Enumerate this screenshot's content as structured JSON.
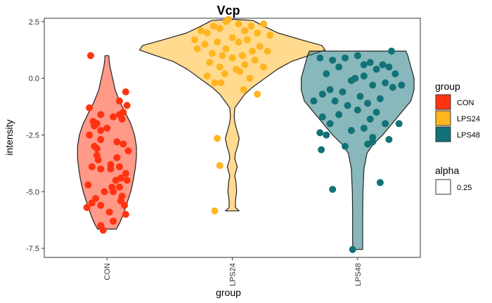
{
  "chart_data": {
    "type": "violin",
    "title": "Vcp",
    "xlabel": "group",
    "ylabel": "intensity",
    "ylim": [
      -7.9,
      2.65
    ],
    "yticks": [
      2.5,
      0.0,
      -2.5,
      -5.0,
      -7.5
    ],
    "ytick_labels": [
      "2.5",
      "0.0",
      "-2.5",
      "-5.0",
      "-7.5"
    ],
    "categories": [
      "CON",
      "LPS24",
      "LPS48"
    ],
    "colors": {
      "CON": "#ff3311",
      "LPS24": "#ffb520",
      "LPS48": "#127277"
    },
    "violin_alpha": 0.5,
    "grid": false,
    "legend_position": "right",
    "legends": [
      {
        "title": "group",
        "items": [
          "CON",
          "LPS24",
          "LPS48"
        ]
      },
      {
        "title": "alpha",
        "items": [
          "0.25"
        ]
      }
    ],
    "violins": [
      {
        "group": "CON",
        "profile": [
          [
            -6.65,
            0.15
          ],
          [
            -6.4,
            0.2
          ],
          [
            -6.0,
            0.26
          ],
          [
            -5.5,
            0.32
          ],
          [
            -5.0,
            0.38
          ],
          [
            -4.5,
            0.42
          ],
          [
            -4.0,
            0.45
          ],
          [
            -3.5,
            0.47
          ],
          [
            -3.0,
            0.47
          ],
          [
            -2.5,
            0.44
          ],
          [
            -2.0,
            0.38
          ],
          [
            -1.5,
            0.29
          ],
          [
            -1.0,
            0.2
          ],
          [
            -0.5,
            0.13
          ],
          [
            0.0,
            0.09
          ],
          [
            0.5,
            0.05
          ],
          [
            0.8,
            0.035
          ],
          [
            1.0,
            0.03
          ]
        ]
      },
      {
        "group": "LPS24",
        "profile": [
          [
            -5.85,
            0.11
          ],
          [
            -5.7,
            0.05
          ],
          [
            -5.4,
            0.05
          ],
          [
            -5.0,
            0.07
          ],
          [
            -4.6,
            0.06
          ],
          [
            -4.3,
            0.04
          ],
          [
            -3.9,
            0.08
          ],
          [
            -3.55,
            0.04
          ],
          [
            -3.3,
            0.05
          ],
          [
            -3.0,
            0.085
          ],
          [
            -2.65,
            0.11
          ],
          [
            -2.3,
            0.075
          ],
          [
            -2.0,
            0.045
          ],
          [
            -1.7,
            0.03
          ],
          [
            -1.3,
            0.04
          ],
          [
            -1.0,
            0.12
          ],
          [
            -0.7,
            0.2
          ],
          [
            -0.4,
            0.32
          ],
          [
            0.0,
            0.52
          ],
          [
            0.4,
            0.72
          ],
          [
            0.75,
            0.95
          ],
          [
            1.0,
            1.22
          ],
          [
            1.25,
            1.48
          ],
          [
            1.45,
            1.43
          ],
          [
            1.7,
            1.1
          ],
          [
            2.0,
            0.73
          ],
          [
            2.3,
            0.5
          ],
          [
            2.55,
            0.33
          ],
          [
            2.6,
            0.05
          ]
        ]
      },
      {
        "group": "LPS48",
        "profile": [
          [
            -7.55,
            0.08
          ],
          [
            -7.0,
            0.08
          ],
          [
            -6.0,
            0.08
          ],
          [
            -5.0,
            0.085
          ],
          [
            -4.0,
            0.1
          ],
          [
            -3.3,
            0.15
          ],
          [
            -2.9,
            0.25
          ],
          [
            -2.5,
            0.4
          ],
          [
            -2.0,
            0.55
          ],
          [
            -1.5,
            0.7
          ],
          [
            -1.0,
            0.85
          ],
          [
            -0.5,
            0.9
          ],
          [
            0.0,
            0.9
          ],
          [
            0.5,
            0.85
          ],
          [
            1.0,
            0.8
          ],
          [
            1.2,
            0.77
          ]
        ]
      }
    ],
    "points": [
      {
        "group": "CON",
        "x_offset": [
          -0.13,
          0.15,
          0.1,
          -0.14,
          -0.05,
          0.13,
          -0.11,
          0.16,
          -0.05,
          -0.1,
          0.05,
          -0.14,
          -0.08,
          0.08,
          0.17,
          0.12,
          -0.08,
          -0.05,
          0.15,
          0.08,
          -0.12,
          0.03,
          0.11,
          -0.05,
          0.1,
          -0.15,
          0.05,
          0.12,
          -0.05,
          0.14,
          -0.12,
          0.02,
          0.05,
          -0.05,
          0.15,
          -0.02,
          0.1,
          -0.08,
          0.13,
          0.0,
          0.1,
          -0.1,
          0.04,
          -0.09,
          0.16,
          -0.16,
          -0.03,
          0.07,
          -0.07,
          0.11,
          0.03
        ],
        "y": [
          1.0,
          -0.6,
          -1.0,
          -1.3,
          -1.6,
          -1.5,
          -1.9,
          -1.2,
          -2.3,
          -2.1,
          -1.7,
          -2.5,
          -3.1,
          -2.8,
          -3.2,
          -1.8,
          -2.0,
          -2.7,
          -4.2,
          -3.5,
          -3.9,
          -3.8,
          -4.4,
          -4.0,
          -4.8,
          -4.7,
          -5.0,
          -5.2,
          -5.6,
          -5.6,
          -5.5,
          -5.9,
          -6.3,
          -6.5,
          -6.0,
          -5.0,
          -3.9,
          -3.4,
          -2.9,
          -2.2,
          -1.6,
          -3.0,
          -4.8,
          -5.3,
          -4.5,
          -5.7,
          -6.7,
          -4.5,
          -3.6,
          -5.4,
          -4.0
        ]
      },
      {
        "group": "LPS24",
        "x_offset": [
          -0.15,
          -0.05,
          0.05,
          0.15,
          0.25,
          -0.25,
          0.1,
          -0.1,
          0.2,
          -0.2,
          0.0,
          0.3,
          -0.3,
          0.12,
          -0.12,
          0.22,
          -0.22,
          0.05,
          -0.05,
          0.16,
          -0.16,
          0.08,
          -0.08,
          0.28,
          -0.28,
          0.0,
          0.18,
          -0.18,
          0.1,
          -0.1,
          0.03,
          0.25,
          0.06,
          -0.06,
          0.14,
          -0.14,
          0.09,
          -0.09,
          0.2,
          -0.2,
          -0.03,
          -0.12,
          -0.1,
          -0.14
        ],
        "y": [
          2.3,
          2.5,
          2.4,
          2.3,
          2.4,
          2.1,
          2.1,
          2.2,
          2.0,
          2.0,
          1.8,
          1.9,
          1.7,
          1.7,
          1.6,
          1.4,
          1.5,
          1.6,
          1.3,
          1.2,
          1.1,
          1.0,
          1.0,
          1.2,
          1.3,
          0.9,
          0.8,
          0.7,
          0.6,
          0.5,
          0.4,
          0.5,
          0.3,
          0.2,
          0.0,
          -0.2,
          -0.5,
          -0.2,
          -0.7,
          0.1,
          2.6,
          -2.65,
          -3.85,
          -5.85
        ]
      },
      {
        "group": "LPS48",
        "x_offset": [
          -0.2,
          -0.1,
          0.0,
          0.1,
          0.2,
          0.25,
          -0.25,
          0.15,
          -0.15,
          0.05,
          -0.05,
          0.22,
          -0.22,
          0.12,
          -0.12,
          0.02,
          0.18,
          -0.18,
          0.08,
          -0.08,
          0.28,
          -0.28,
          0.0,
          0.15,
          -0.15,
          0.1,
          0.22,
          -0.22,
          0.05,
          -0.05,
          0.12,
          0.25,
          -0.25,
          0.08,
          -0.1,
          0.3,
          -0.3,
          0.05,
          -0.02,
          0.35,
          -0.35,
          -0.28,
          0.27,
          0.33,
          -0.3,
          -0.29,
          0.12,
          -0.2,
          0.18
        ],
        "y": [
          0.8,
          0.9,
          1.0,
          0.7,
          0.6,
          0.5,
          0.2,
          0.4,
          0.5,
          0.1,
          -0.1,
          -0.2,
          -0.5,
          -0.3,
          -0.6,
          -0.8,
          -0.9,
          -1.0,
          -1.1,
          -1.2,
          -0.4,
          -0.7,
          -1.4,
          -1.5,
          -1.6,
          -1.8,
          -2.0,
          -2.0,
          -2.2,
          -2.3,
          -2.6,
          -2.7,
          -2.5,
          -2.9,
          -3.0,
          0.2,
          0.9,
          0.6,
          0.0,
          -0.3,
          -1.0,
          -1.7,
          1.2,
          -2.0,
          -2.4,
          -3.15,
          -2.8,
          -4.9,
          -4.6
        ]
      }
    ],
    "outlier_points": [
      {
        "group": "LPS48",
        "x_offset": -0.04,
        "y": -7.55
      }
    ]
  }
}
